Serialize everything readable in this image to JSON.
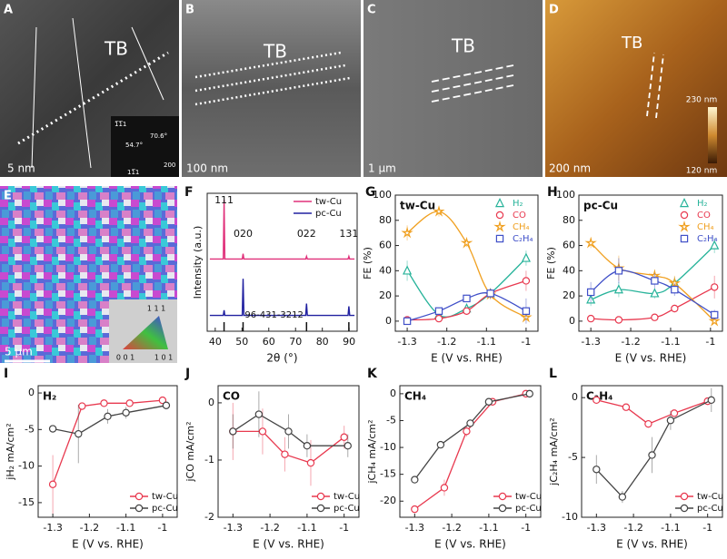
{
  "image_panels": [
    {
      "letter": "A",
      "texts": [
        "TB",
        "5 nm",
        "1̅1̅1",
        "54.7°",
        "70.6°",
        "200",
        "11̅1"
      ]
    },
    {
      "letter": "B",
      "texts": [
        "TB",
        "100 nm"
      ]
    },
    {
      "letter": "C",
      "texts": [
        "TB",
        "1 μm"
      ]
    },
    {
      "letter": "D",
      "texts": [
        "TB",
        "230 nm",
        "120 nm",
        "200 nm"
      ]
    },
    {
      "letter": "E",
      "texts": [
        "5 μm",
        "1 1 1",
        "0 0 1",
        "1 0 1"
      ]
    }
  ],
  "chart_data": [
    {
      "type": "line",
      "panel": "F",
      "x": [
        38,
        43,
        43.3,
        43.6,
        50.1,
        50.4,
        50.7,
        73.8,
        74.1,
        74.4,
        89.6,
        89.9,
        90.2,
        92
      ],
      "series": [
        {
          "name": "tw-Cu",
          "color": "#e0307a",
          "values": [
            55,
            55,
            100,
            55,
            55,
            59,
            55,
            55,
            57,
            55,
            55,
            57,
            55,
            55
          ]
        },
        {
          "name": "pc-Cu",
          "color": "#2020a0",
          "values": [
            12,
            12,
            16,
            12,
            12,
            40,
            12,
            12,
            21,
            12,
            12,
            19,
            12,
            12
          ]
        }
      ],
      "reference": {
        "name": "96-431-3212",
        "x": [
          43.3,
          50.4,
          74.1,
          89.9
        ]
      },
      "peak_labels": [
        "111",
        "020",
        "022",
        "131"
      ],
      "xlim": [
        37,
        93
      ],
      "ylim": [
        0,
        105
      ],
      "xticks": [
        40,
        50,
        60,
        70,
        80,
        90
      ],
      "xlabel": "2θ (°)",
      "ylabel": "Intensity (a.u.)",
      "legend": "upper right"
    },
    {
      "type": "scatter",
      "panel": "G",
      "title": "tw-Cu",
      "curve": "smooth",
      "x": [
        -1.3,
        -1.22,
        -1.15,
        -1.09,
        -1.0
      ],
      "series": [
        {
          "name": "H₂",
          "color": "#27b39a",
          "marker": "triangle",
          "values": [
            40,
            5,
            10,
            22,
            50
          ],
          "errors": [
            8,
            3,
            3,
            4,
            6
          ]
        },
        {
          "name": "CO",
          "color": "#e8394f",
          "marker": "circle",
          "values": [
            1,
            2,
            8,
            22,
            32
          ],
          "errors": [
            1,
            1,
            2,
            4,
            8
          ]
        },
        {
          "name": "CH₄",
          "color": "#f0a020",
          "marker": "star",
          "values": [
            70,
            87,
            62,
            21,
            3
          ],
          "errors": [
            6,
            4,
            3,
            4,
            2
          ]
        },
        {
          "name": "C₂H₄",
          "color": "#3f4fc8",
          "marker": "square",
          "values": [
            0,
            8,
            18,
            22,
            8
          ],
          "errors": [
            1,
            2,
            3,
            4,
            10
          ]
        }
      ],
      "xlim": [
        -1.33,
        -0.97
      ],
      "ylim": [
        -8,
        100
      ],
      "xticks": [
        -1.3,
        -1.2,
        -1.1,
        -1
      ],
      "yticks": [
        0,
        20,
        40,
        60,
        80,
        100
      ],
      "xlabel": "E (V vs. RHE)",
      "ylabel": "FE (%)",
      "legend": "upper right"
    },
    {
      "type": "scatter",
      "panel": "H",
      "title": "pc-Cu",
      "curve": "smooth",
      "x": [
        -1.3,
        -1.23,
        -1.14,
        -1.09,
        -0.99
      ],
      "series": [
        {
          "name": "H₂",
          "color": "#27b39a",
          "marker": "triangle",
          "values": [
            17,
            25,
            22,
            30,
            60
          ],
          "errors": [
            5,
            6,
            4,
            5,
            6
          ]
        },
        {
          "name": "CO",
          "color": "#e8394f",
          "marker": "circle",
          "values": [
            2,
            1,
            3,
            10,
            27
          ],
          "errors": [
            1,
            1,
            1,
            3,
            9
          ]
        },
        {
          "name": "CH₄",
          "color": "#f0a020",
          "marker": "star",
          "values": [
            62,
            42,
            36,
            30,
            0
          ],
          "errors": [
            4,
            10,
            5,
            6,
            1
          ]
        },
        {
          "name": "C₂H₄",
          "color": "#3f4fc8",
          "marker": "square",
          "values": [
            23,
            40,
            32,
            25,
            5
          ],
          "errors": [
            8,
            10,
            6,
            5,
            4
          ]
        }
      ],
      "xlim": [
        -1.33,
        -0.97
      ],
      "ylim": [
        -8,
        100
      ],
      "xticks": [
        -1.3,
        -1.2,
        -1.1,
        -1
      ],
      "yticks": [
        0,
        20,
        40,
        60,
        80,
        100
      ],
      "xlabel": "E (V vs. RHE)",
      "ylabel": "FE (%)",
      "legend": "upper right"
    },
    {
      "type": "scatter",
      "panel": "I",
      "title": "H₂",
      "curve": "straight",
      "series": [
        {
          "name": "tw-Cu",
          "color": "#e8394f",
          "marker": "circle",
          "x": [
            -1.3,
            -1.22,
            -1.16,
            -1.09,
            -1.0
          ],
          "values": [
            -12.5,
            -1.8,
            -1.4,
            -1.4,
            -1.0
          ],
          "errors": [
            4,
            0.5,
            0.3,
            0.3,
            0.3
          ]
        },
        {
          "name": "pc-Cu",
          "color": "#444444",
          "marker": "circle",
          "x": [
            -1.3,
            -1.23,
            -1.15,
            -1.1,
            -0.99
          ],
          "values": [
            -4.9,
            -5.6,
            -3.2,
            -2.7,
            -1.7
          ],
          "errors": [
            0.5,
            4,
            1,
            0.8,
            0.5
          ]
        }
      ],
      "xlim": [
        -1.34,
        -0.96
      ],
      "ylim": [
        -17,
        1
      ],
      "xticks": [
        -1.3,
        -1.2,
        -1.1,
        -1
      ],
      "yticks": [
        0,
        -5,
        -10,
        -15
      ],
      "xlabel": "E (V vs. RHE)",
      "ylabel": "jH₂ mA/cm²",
      "legend": "lower right"
    },
    {
      "type": "scatter",
      "panel": "J",
      "title": "CO",
      "curve": "straight",
      "series": [
        {
          "name": "tw-Cu",
          "color": "#e8394f",
          "marker": "circle",
          "x": [
            -1.3,
            -1.22,
            -1.16,
            -1.09,
            -1.0
          ],
          "values": [
            -0.5,
            -0.5,
            -0.9,
            -1.05,
            -0.6
          ],
          "errors": [
            0.5,
            0.4,
            0.3,
            0.4,
            0.2
          ]
        },
        {
          "name": "pc-Cu",
          "color": "#444444",
          "marker": "circle",
          "x": [
            -1.3,
            -1.23,
            -1.15,
            -1.1,
            -0.99
          ],
          "values": [
            -0.5,
            -0.2,
            -0.5,
            -0.75,
            -0.75
          ],
          "errors": [
            0.3,
            0.4,
            0.3,
            0.2,
            0.2
          ]
        }
      ],
      "xlim": [
        -1.34,
        -0.96
      ],
      "ylim": [
        -2,
        0.3
      ],
      "xticks": [
        -1.3,
        -1.2,
        -1.1,
        -1
      ],
      "yticks": [
        0,
        -1,
        -2
      ],
      "xlabel": "E (V vs. RHE)",
      "ylabel": "jCO mA/cm²",
      "legend": "lower right"
    },
    {
      "type": "scatter",
      "panel": "K",
      "title": "CH₄",
      "curve": "straight",
      "series": [
        {
          "name": "tw-Cu",
          "color": "#e8394f",
          "marker": "circle",
          "x": [
            -1.3,
            -1.22,
            -1.16,
            -1.09,
            -1.0
          ],
          "values": [
            -21.5,
            -17.5,
            -7,
            -1.5,
            0
          ],
          "errors": [
            0.5,
            1.5,
            1,
            0.3,
            0.2
          ]
        },
        {
          "name": "pc-Cu",
          "color": "#444444",
          "marker": "circle",
          "x": [
            -1.3,
            -1.23,
            -1.15,
            -1.1,
            -0.99
          ],
          "values": [
            -16,
            -9.5,
            -5.5,
            -1.5,
            0
          ],
          "errors": [
            0.5,
            0.5,
            0.5,
            0.3,
            0.2
          ]
        }
      ],
      "xlim": [
        -1.34,
        -0.96
      ],
      "ylim": [
        -23,
        1.5
      ],
      "xticks": [
        -1.3,
        -1.2,
        -1.1,
        -1
      ],
      "yticks": [
        0,
        -5,
        -10,
        -15,
        -20
      ],
      "xlabel": "E (V vs. RHE)",
      "ylabel": "jCH₄ mA/cm²",
      "legend": "lower right"
    },
    {
      "type": "scatter",
      "panel": "L",
      "title": "C₂H₄",
      "curve": "straight",
      "series": [
        {
          "name": "tw-Cu",
          "color": "#e8394f",
          "marker": "circle",
          "x": [
            -1.3,
            -1.22,
            -1.16,
            -1.09,
            -1.0
          ],
          "values": [
            -0.2,
            -0.8,
            -2.2,
            -1.3,
            -0.3
          ],
          "errors": [
            0.3,
            0.3,
            0.3,
            0.3,
            0.2
          ]
        },
        {
          "name": "pc-Cu",
          "color": "#444444",
          "marker": "circle",
          "x": [
            -1.3,
            -1.23,
            -1.15,
            -1.1,
            -0.99
          ],
          "values": [
            -6,
            -8.3,
            -4.8,
            -1.9,
            -0.2
          ],
          "errors": [
            1.2,
            0.5,
            1.5,
            0.8,
            1
          ]
        }
      ],
      "xlim": [
        -1.34,
        -0.96
      ],
      "ylim": [
        -10,
        1
      ],
      "xticks": [
        -1.3,
        -1.2,
        -1.1,
        -1
      ],
      "yticks": [
        0,
        -5,
        -10
      ],
      "xlabel": "E (V vs. RHE)",
      "ylabel": "jC₂H₄ mA/cm²",
      "legend": "lower right"
    }
  ]
}
